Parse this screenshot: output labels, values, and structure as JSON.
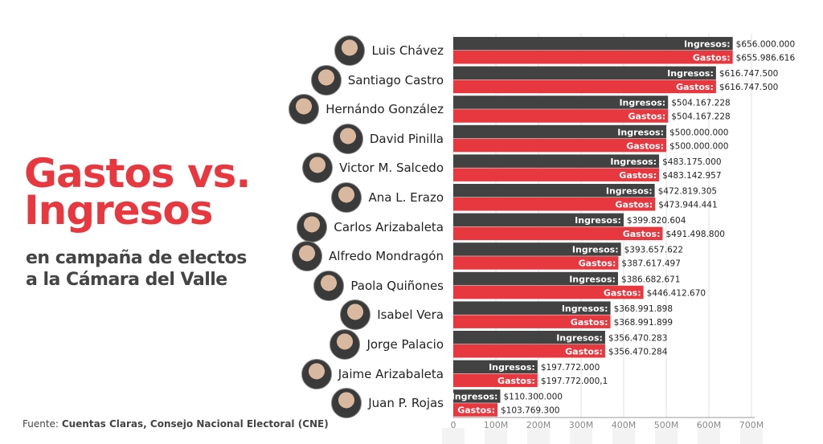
{
  "title": "Gastos vs. Ingresos",
  "title_line1": "Gastos vs.",
  "title_line2": "Ingresos",
  "subtitle_line1": "en campaña de electos",
  "subtitle_line2": "a la Cámara del Valle",
  "source_prefix": "Fuente:",
  "source_text": "Cuentas Claras, Consejo Nacional Electoral (CNE)",
  "colors": {
    "ingresos": "#424242",
    "gastos": "#e8383f"
  },
  "chart_data": {
    "type": "bar",
    "orientation": "horizontal",
    "categories": [
      "Luis Chávez",
      "Santiago Castro",
      "Hernándo González",
      "David Pinilla",
      "Victor M. Salcedo",
      "Ana L. Erazo",
      "Carlos Arizabaleta",
      "Alfredo Mondragón",
      "Paola Quiñones",
      "Isabel Vera",
      "Jorge Palacio",
      "Jaime Arizabaleta",
      "Juan P. Rojas"
    ],
    "series": [
      {
        "name": "Ingresos:",
        "values": [
          656000000,
          616747500,
          504167228,
          500000000,
          483175000,
          472819305,
          399820604,
          393657622,
          386682671,
          368991898,
          356470283,
          197772000,
          110300000
        ],
        "labels": [
          "$656.000.000",
          "$616.747.500",
          "$504.167.228",
          "$500.000.000",
          "$483.175.000",
          "$472.819.305",
          "$399.820.604",
          "$393.657.622",
          "$386.682.671",
          "$368.991.898",
          "$356.470.283",
          "$197.772.000",
          "$110.300.000"
        ]
      },
      {
        "name": "Gastos:",
        "values": [
          655986616,
          616747500,
          504167228,
          500000000,
          483142957,
          473944441,
          491498800,
          387617497,
          446412670,
          368991899,
          356470284,
          197772000.1,
          103769300
        ],
        "labels": [
          "$655.986.616",
          "$616.747.500",
          "$504.167.228",
          "$500.000.000",
          "$483.142.957",
          "$473.944.441",
          "$491.498.800",
          "$387.617.497",
          "$446.412.670",
          "$368.991.899",
          "$356.470.284",
          "$197.772.000,1",
          "$103.769.300"
        ]
      }
    ],
    "xlim": [
      0,
      700000000
    ],
    "xticks": [
      "0",
      "100M",
      "200M",
      "300M",
      "400M",
      "500M",
      "600M",
      "700M"
    ],
    "grid": true
  }
}
